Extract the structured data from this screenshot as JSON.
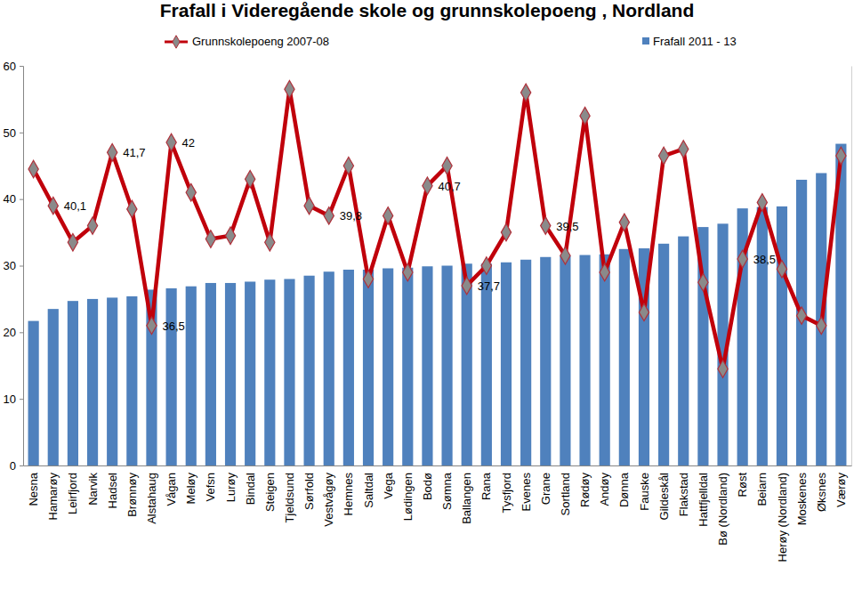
{
  "chart_data": {
    "type": "bar",
    "title": "Frafall i Videregående skole og grunnskolepoeng , Nordland",
    "categories": [
      "Nesna",
      "Hamarøy",
      "Leirfjord",
      "Narvik",
      "Hadsel",
      "Brønnøy",
      "Alstahaug",
      "Vågan",
      "Meløy",
      "Vefsn",
      "Lurøy",
      "Bindal",
      "Steigen",
      "Tjeldsund",
      "Sørfold",
      "Vestvågøy",
      "Hemnes",
      "Saltdal",
      "Vega",
      "Lødingen",
      "Bodø",
      "Sømna",
      "Ballangen",
      "Rana",
      "Tysfjord",
      "Evenes",
      "Grane",
      "Sortland",
      "Rødøy",
      "Andøy",
      "Dønna",
      "Fauske",
      "Gildeskål",
      "Flakstad",
      "Hattfjelldal",
      "Bø (Nordland)",
      "Røst",
      "Beiarn",
      "Herøy (Nordland)",
      "Moskenes",
      "Øksnes",
      "Værøy"
    ],
    "series": [
      {
        "name": "Grunnskolepoeng 2007-08",
        "type": "line",
        "axis": "y2",
        "color": "#c0000b",
        "marker": "diamond",
        "values": [
          41.2,
          40.1,
          39.0,
          39.5,
          41.7,
          40.0,
          36.5,
          42.0,
          40.5,
          39.1,
          39.2,
          40.9,
          39.0,
          43.6,
          40.1,
          39.8,
          41.3,
          37.9,
          39.8,
          38.1,
          40.7,
          41.3,
          37.7,
          38.3,
          39.3,
          43.5,
          39.5,
          38.6,
          42.8,
          38.1,
          39.6,
          36.9,
          41.6,
          41.8,
          37.8,
          35.2,
          38.5,
          40.2,
          38.2,
          36.8,
          36.5,
          41.6
        ],
        "value_labels": [
          null,
          "40,1",
          null,
          null,
          "41,7",
          null,
          "36,5",
          "42",
          null,
          null,
          null,
          null,
          null,
          null,
          null,
          "39,8",
          null,
          null,
          null,
          null,
          "40,7",
          null,
          "37,7",
          null,
          null,
          null,
          "39,5",
          null,
          null,
          null,
          null,
          null,
          null,
          null,
          null,
          null,
          "38,5",
          null,
          null,
          null,
          null,
          null
        ]
      },
      {
        "name": "Frafall 2011 - 13",
        "type": "bar",
        "color": "#4f81bd",
        "values": [
          21.7,
          23.5,
          24.7,
          25.0,
          25.2,
          25.4,
          26.4,
          26.6,
          26.9,
          27.4,
          27.4,
          27.6,
          27.9,
          28.0,
          28.5,
          29.1,
          29.4,
          29.4,
          29.6,
          29.7,
          29.9,
          30.0,
          30.3,
          30.3,
          30.5,
          30.9,
          31.3,
          31.5,
          31.6,
          31.7,
          32.5,
          32.6,
          33.3,
          34.4,
          35.8,
          36.3,
          38.6,
          38.8,
          38.9,
          42.9,
          43.9,
          48.3
        ]
      }
    ],
    "ylim": [
      0,
      60
    ],
    "yticks": [
      0,
      10,
      20,
      30,
      40,
      50,
      60
    ],
    "y2lim": [
      32.3,
      44.3
    ],
    "grid": false,
    "legend": "top",
    "data_labels": true
  }
}
